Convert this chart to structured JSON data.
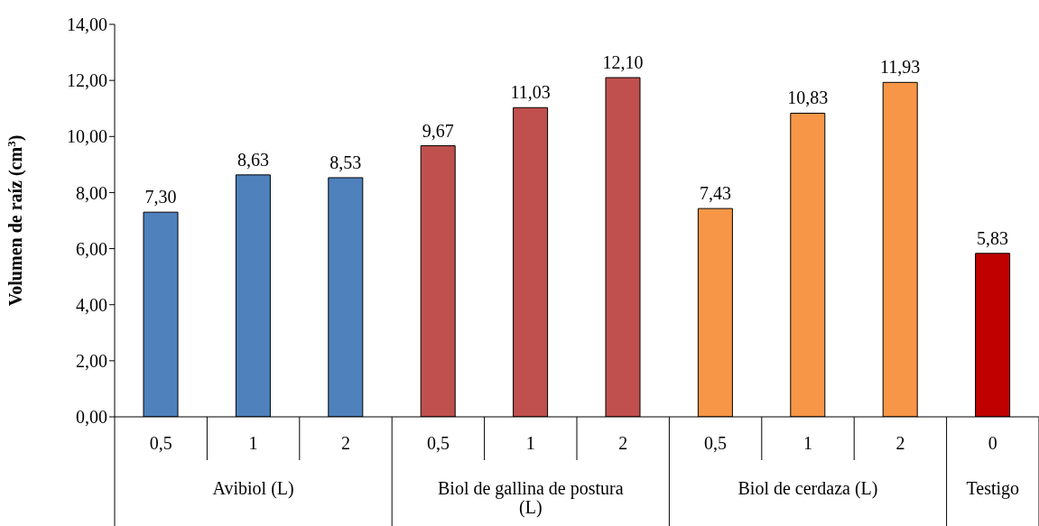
{
  "chart_data": {
    "type": "bar",
    "ylabel": "Volumen de raíz (cm$^{3}$)",
    "categories": [
      "0,5",
      "1",
      "2",
      "0,5",
      "1",
      "2",
      "0,5",
      "1",
      "2",
      "0"
    ],
    "values": [
      7.3,
      8.63,
      8.53,
      9.67,
      11.03,
      12.1,
      7.43,
      10.83,
      11.93,
      5.83
    ],
    "value_labels": [
      "7,30",
      "8,63",
      "8,53",
      "9,67",
      "11,03",
      "12,10",
      "7,43",
      "10,83",
      "11,93",
      "5,83"
    ],
    "colors": [
      "#4f81bd",
      "#4f81bd",
      "#4f81bd",
      "#c0504d",
      "#c0504d",
      "#c0504d",
      "#f79646",
      "#f79646",
      "#f79646",
      "#c00000"
    ],
    "annotations": [
      "Avibiol (L)",
      "Biol de gallina de postura (L)",
      "Biol de cerdaza (L)",
      "Testigo"
    ],
    "ylim": [
      0,
      14
    ],
    "yticks": [
      {
        "value": 0,
        "label": "0,00"
      },
      {
        "value": 2,
        "label": "2,00"
      },
      {
        "value": 4,
        "label": "4,00"
      },
      {
        "value": 6,
        "label": "6,00"
      },
      {
        "value": 8,
        "label": "8,00"
      },
      {
        "value": 10,
        "label": "10,00"
      },
      {
        "value": 12,
        "label": "12,00"
      },
      {
        "value": 14,
        "label": "14,00"
      }
    ],
    "grid": false,
    "legend": false
  }
}
